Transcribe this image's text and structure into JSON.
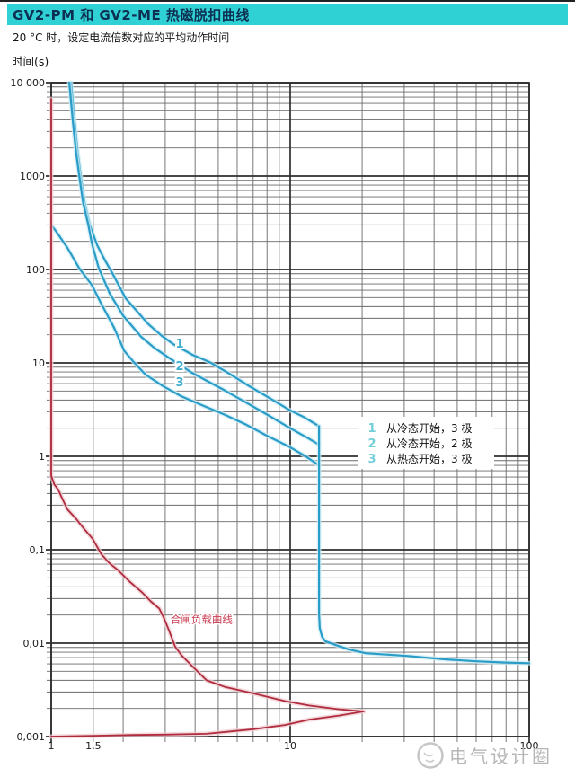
{
  "header": {
    "title": "GV2-PM 和 GV2-ME 热磁脱扣曲线",
    "subtitle": "20 °C 时，设定电流倍数对应的平均动作时间",
    "accent_color": "#2fd1d4",
    "title_color": "#0d2f52"
  },
  "watermark": {
    "text": "电气设计圈",
    "color": "#b6b6b6",
    "icon": "circle-logo-icon"
  },
  "chart_data": {
    "type": "line",
    "title": "GV2-PM 和 GV2-ME 热磁脱扣曲线",
    "xlabel": "",
    "ylabel": "时间(s)",
    "x_scale": "log",
    "y_scale": "log",
    "xlim": [
      1,
      100
    ],
    "ylim": [
      0.001,
      10000
    ],
    "grid": true,
    "legend_position": "middle-right",
    "x_ticks": [
      {
        "v": 1,
        "label": "1"
      },
      {
        "v": 1.5,
        "label": "1,5"
      },
      {
        "v": 10,
        "label": "10"
      },
      {
        "v": 100,
        "label": "100"
      }
    ],
    "y_ticks": [
      {
        "v": 10000,
        "label": "10 000"
      },
      {
        "v": 1000,
        "label": "1000"
      },
      {
        "v": 100,
        "label": "100"
      },
      {
        "v": 10,
        "label": "10"
      },
      {
        "v": 1,
        "label": "1"
      },
      {
        "v": 0.1,
        "label": "0,1"
      },
      {
        "v": 0.01,
        "label": "0,01"
      },
      {
        "v": 0.001,
        "label": "0,001"
      }
    ],
    "x_gridlines_major": [
      1,
      10,
      100
    ],
    "x_gridlines_minor": [
      1.5,
      2,
      3,
      4,
      5,
      6,
      7,
      8,
      9,
      20,
      30,
      40,
      50,
      60,
      70,
      80,
      90
    ],
    "y_gridlines_major": [
      10000,
      1000,
      100,
      10,
      1,
      0.1,
      0.01,
      0.001
    ],
    "y_minor_mantissas": [
      2,
      3,
      4,
      5,
      6,
      7,
      8,
      9
    ],
    "colors": {
      "thermal_curves": "#2a9cc7",
      "thermal_halo": "#cdeef6",
      "closing_load": "#ae2c3e",
      "closing_halo": "#f0ccd1",
      "legend_marker": "#74cfd8",
      "curve_label": "#3fadcc",
      "red_label": "#c94054",
      "grid_minor": "#6a6a6a",
      "grid_major": "#2e2e2e",
      "axis_text": "#1a1a1a"
    },
    "series": [
      {
        "id": "curve1",
        "marker": "1",
        "name": "从冷态开始，3 极",
        "color": "#2a9cc7",
        "points": [
          [
            1.21,
            10000
          ],
          [
            1.25,
            4000
          ],
          [
            1.29,
            1800
          ],
          [
            1.33,
            1000
          ],
          [
            1.38,
            520
          ],
          [
            1.45,
            300
          ],
          [
            1.56,
            180
          ],
          [
            1.68,
            125
          ],
          [
            1.8,
            92
          ],
          [
            2.05,
            49
          ],
          [
            2.3,
            35
          ],
          [
            2.55,
            26
          ],
          [
            2.9,
            19.5
          ],
          [
            3.25,
            15.8
          ],
          [
            3.9,
            12.2
          ],
          [
            4.6,
            10.2
          ],
          [
            5.6,
            7.6
          ],
          [
            6.7,
            5.7
          ],
          [
            8.2,
            4.2
          ],
          [
            10.0,
            3.1
          ],
          [
            11.5,
            2.6
          ],
          [
            13.2,
            2.1
          ]
        ]
      },
      {
        "id": "curve2",
        "marker": "2",
        "name": "从冷态开始，2 极",
        "color": "#2a9cc7",
        "points": [
          [
            1.19,
            10000
          ],
          [
            1.23,
            4000
          ],
          [
            1.27,
            1800
          ],
          [
            1.31,
            1000
          ],
          [
            1.36,
            520
          ],
          [
            1.43,
            300
          ],
          [
            1.48,
            190
          ],
          [
            1.58,
            104
          ],
          [
            1.76,
            55
          ],
          [
            2.0,
            32
          ],
          [
            2.38,
            19
          ],
          [
            2.7,
            14.5
          ],
          [
            3.08,
            11.5
          ],
          [
            3.86,
            7.9
          ],
          [
            4.6,
            6.2
          ],
          [
            5.3,
            5.1
          ],
          [
            6.5,
            3.8
          ],
          [
            8.0,
            2.8
          ],
          [
            10.0,
            2.0
          ],
          [
            11.9,
            1.56
          ],
          [
            13.2,
            1.33
          ]
        ]
      },
      {
        "id": "curve3",
        "marker": "3",
        "name": "从热态开始，3 极",
        "color": "#2a9cc7",
        "points": [
          [
            1.0,
            300
          ],
          [
            1.05,
            255
          ],
          [
            1.17,
            170
          ],
          [
            1.31,
            103
          ],
          [
            1.48,
            68
          ],
          [
            1.62,
            43
          ],
          [
            1.83,
            24
          ],
          [
            2.02,
            13.5
          ],
          [
            2.2,
            10.4
          ],
          [
            2.48,
            7.5
          ],
          [
            2.95,
            5.6
          ],
          [
            3.5,
            4.4
          ],
          [
            4.3,
            3.5
          ],
          [
            5.3,
            2.8
          ],
          [
            6.5,
            2.2
          ],
          [
            8.0,
            1.66
          ],
          [
            10.0,
            1.25
          ],
          [
            11.6,
            1.0
          ],
          [
            13.2,
            0.8
          ]
        ]
      },
      {
        "id": "magnetic",
        "marker": "",
        "name": "",
        "color": "#2a9cc7",
        "points": [
          [
            13.2,
            2.1
          ],
          [
            13.2,
            0.021
          ],
          [
            13.3,
            0.0145
          ],
          [
            13.6,
            0.0117
          ],
          [
            14.0,
            0.0105
          ],
          [
            15.4,
            0.0096
          ],
          [
            17.5,
            0.0086
          ],
          [
            20.7,
            0.0078
          ],
          [
            30.8,
            0.0073
          ],
          [
            45,
            0.0067
          ],
          [
            60,
            0.0064
          ],
          [
            80,
            0.0062
          ],
          [
            100,
            0.0061
          ]
        ]
      },
      {
        "id": "closing-load",
        "marker": "",
        "name": "合闸负载曲线",
        "color": "#ae2c3e",
        "points": [
          [
            1.0,
            6700
          ],
          [
            1.0,
            0.62
          ],
          [
            1.03,
            0.5
          ],
          [
            1.07,
            0.44
          ],
          [
            1.12,
            0.34
          ],
          [
            1.17,
            0.27
          ],
          [
            1.27,
            0.215
          ],
          [
            1.38,
            0.165
          ],
          [
            1.49,
            0.131
          ],
          [
            1.62,
            0.09
          ],
          [
            1.75,
            0.072
          ],
          [
            1.91,
            0.06
          ],
          [
            2.14,
            0.045
          ],
          [
            2.4,
            0.035
          ],
          [
            2.61,
            0.028
          ],
          [
            2.83,
            0.0235
          ],
          [
            2.95,
            0.019
          ],
          [
            3.11,
            0.0137
          ],
          [
            3.3,
            0.0092
          ],
          [
            3.51,
            0.0074
          ],
          [
            4.0,
            0.0053
          ],
          [
            4.47,
            0.004
          ],
          [
            5.32,
            0.0034
          ],
          [
            7.0,
            0.0029
          ],
          [
            9.5,
            0.0024
          ],
          [
            12.0,
            0.00215
          ],
          [
            16.0,
            0.00196
          ],
          [
            20.3,
            0.00186
          ],
          [
            16.0,
            0.00168
          ],
          [
            12.0,
            0.00152
          ],
          [
            9.5,
            0.00133
          ],
          [
            7.0,
            0.0012
          ],
          [
            4.47,
            0.00107
          ],
          [
            3.0,
            0.00105
          ],
          [
            2.2,
            0.00104
          ],
          [
            1.5,
            0.00102
          ],
          [
            1.0,
            0.001
          ]
        ]
      }
    ],
    "curve_labels": [
      {
        "text": "1",
        "x": 3.45,
        "t": 14.5
      },
      {
        "text": "2",
        "x": 3.45,
        "t": 8.4
      },
      {
        "text": "3",
        "x": 3.45,
        "t": 5.6
      }
    ],
    "annotations": [
      {
        "text": "合闸负载曲线",
        "x": 3.16,
        "t": 0.0165
      }
    ],
    "legend": {
      "items": [
        {
          "marker": "1",
          "label": "从冷态开始，3 极"
        },
        {
          "marker": "2",
          "label": "从冷态开始，2 极"
        },
        {
          "marker": "3",
          "label": "从热态开始，3 极"
        }
      ]
    }
  }
}
